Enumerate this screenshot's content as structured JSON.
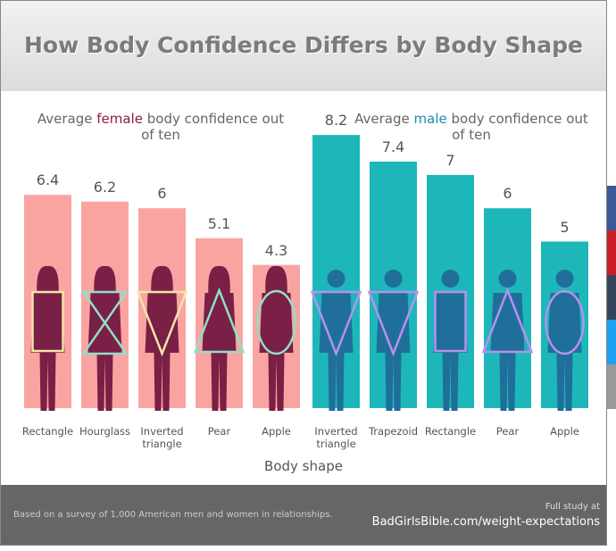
{
  "chart_data": {
    "type": "bar",
    "title": "How Body Confidence Differs by Body Shape",
    "x_label": "Body shape",
    "groups": [
      {
        "label_parts": [
          "Average ",
          "female",
          " body confidence out of ten"
        ],
        "accent": "#8b1d44",
        "color": "#f9a4a1",
        "categories": [
          "Rectangle",
          "Hourglass",
          "Inverted triangle",
          "Pear",
          "Apple"
        ],
        "values": [
          6.4,
          6.2,
          6,
          5.1,
          4.3
        ]
      },
      {
        "label_parts": [
          "Average ",
          "male",
          " body confidence out of ten"
        ],
        "accent": "#1a8fb0",
        "color": "#1db7ba",
        "categories": [
          "Inverted triangle",
          "Trapezoid",
          "Rectangle",
          "Pear",
          "Apple"
        ],
        "values": [
          8.2,
          7.4,
          7,
          6,
          5
        ]
      }
    ]
  },
  "footer": {
    "note": "Based on a survey of 1,000 American men and women in relationships.",
    "cta": "Full study at",
    "link": "BadGirlsBible.com/weight-expectations"
  }
}
